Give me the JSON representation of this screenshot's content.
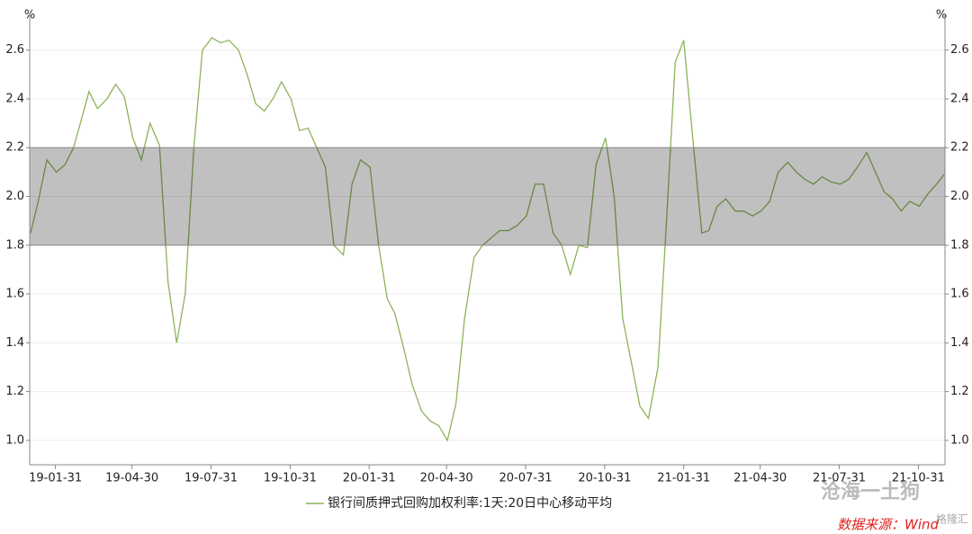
{
  "chart_data": {
    "type": "line",
    "y_unit": "%",
    "y2_unit": "%",
    "x": [
      "19-01-02",
      "19-01-11",
      "19-01-21",
      "19-02-01",
      "19-02-11",
      "19-02-21",
      "19-03-01",
      "19-03-11",
      "19-03-21",
      "19-04-01",
      "19-04-11",
      "19-04-21",
      "19-05-01",
      "19-05-11",
      "19-05-21",
      "19-06-01",
      "19-06-11",
      "19-06-21",
      "19-07-01",
      "19-07-11",
      "19-07-21",
      "19-08-01",
      "19-08-11",
      "19-08-21",
      "19-09-01",
      "19-09-11",
      "19-09-21",
      "19-10-01",
      "19-10-11",
      "19-10-21",
      "19-11-01",
      "19-11-11",
      "19-11-21",
      "19-12-01",
      "19-12-11",
      "19-12-21",
      "20-01-01",
      "20-01-11",
      "20-01-21",
      "20-02-01",
      "20-02-11",
      "20-02-21",
      "20-03-01",
      "20-03-11",
      "20-03-21",
      "20-04-01",
      "20-04-11",
      "20-04-21",
      "20-05-01",
      "20-05-11",
      "20-05-21",
      "20-06-01",
      "20-06-11",
      "20-06-21",
      "20-07-01",
      "20-07-11",
      "20-07-21",
      "20-08-01",
      "20-08-11",
      "20-08-21",
      "20-09-01",
      "20-09-11",
      "20-09-21",
      "20-10-01",
      "20-10-11",
      "20-10-21",
      "20-11-01",
      "20-11-11",
      "20-11-21",
      "20-12-01",
      "20-12-11",
      "20-12-21",
      "21-01-01",
      "21-01-11",
      "21-01-21",
      "21-01-31",
      "21-02-11",
      "21-02-21",
      "21-03-01",
      "21-03-11",
      "21-03-21",
      "21-04-01",
      "21-04-11",
      "21-04-21",
      "21-05-01",
      "21-05-11",
      "21-05-21",
      "21-06-01",
      "21-06-11",
      "21-06-21",
      "21-07-01",
      "21-07-11",
      "21-07-21",
      "21-08-01",
      "21-08-11",
      "21-08-21",
      "21-09-01",
      "21-09-11",
      "21-09-21",
      "21-10-01",
      "21-10-11",
      "21-10-21",
      "21-11-01",
      "21-11-11",
      "21-11-21",
      "21-11-30"
    ],
    "series": [
      {
        "name": "银行间质押式回购加权利率:1天:20日中心移动平均",
        "color": "#8db35a",
        "values": [
          1.85,
          1.98,
          2.15,
          2.1,
          2.13,
          2.2,
          2.3,
          2.43,
          2.36,
          2.4,
          2.46,
          2.41,
          2.24,
          2.15,
          2.3,
          2.21,
          1.65,
          1.4,
          1.6,
          2.2,
          2.6,
          2.65,
          2.63,
          2.64,
          2.6,
          2.5,
          2.38,
          2.35,
          2.4,
          2.47,
          2.4,
          2.27,
          2.28,
          2.2,
          2.12,
          1.8,
          1.76,
          2.05,
          2.15,
          2.12,
          1.8,
          1.58,
          1.52,
          1.38,
          1.23,
          1.12,
          1.08,
          1.06,
          1.0,
          1.15,
          1.5,
          1.75,
          1.8,
          1.83,
          1.86,
          1.86,
          1.88,
          1.92,
          2.05,
          2.05,
          1.85,
          1.8,
          1.68,
          1.8,
          1.79,
          2.13,
          2.24,
          2.0,
          1.5,
          1.32,
          1.14,
          1.09,
          1.3,
          1.9,
          2.55,
          2.64,
          2.22,
          1.85,
          1.86,
          1.96,
          1.99,
          1.94,
          1.94,
          1.92,
          1.94,
          1.98,
          2.1,
          2.14,
          2.1,
          2.07,
          2.05,
          2.08,
          2.06,
          2.05,
          2.07,
          2.12,
          2.18,
          2.1,
          2.02,
          1.99,
          1.94,
          1.98,
          1.96,
          2.01,
          2.05,
          2.09
        ]
      }
    ],
    "band": [
      1.8,
      2.2
    ],
    "band_color": "#c0c0c0",
    "xlim": [
      "19-01-01",
      "21-12-01"
    ],
    "xticks": [
      "19-01-31",
      "19-04-30",
      "19-07-31",
      "19-10-31",
      "20-01-31",
      "20-04-30",
      "20-07-31",
      "20-10-31",
      "21-01-31",
      "21-04-30",
      "21-07-31",
      "21-10-31"
    ],
    "ylim": [
      0.9,
      2.75
    ],
    "yticks": [
      {
        "value": 1,
        "label": "1.0"
      },
      1.2,
      1.4,
      1.6,
      1.8,
      {
        "value": 2,
        "label": "2.0"
      },
      2.2,
      2.4,
      2.6
    ],
    "y2lim": [
      0.9,
      2.75
    ],
    "y2ticks": [
      {
        "value": 1,
        "label": "1.0"
      },
      1.2,
      1.4,
      1.6,
      1.8,
      {
        "value": 2,
        "label": "2.0"
      },
      2.2,
      2.4,
      2.6
    ],
    "grid": true,
    "watermark": "沧海一土狗",
    "source": "数据来源：Wind",
    "logo": "格隆汇"
  }
}
